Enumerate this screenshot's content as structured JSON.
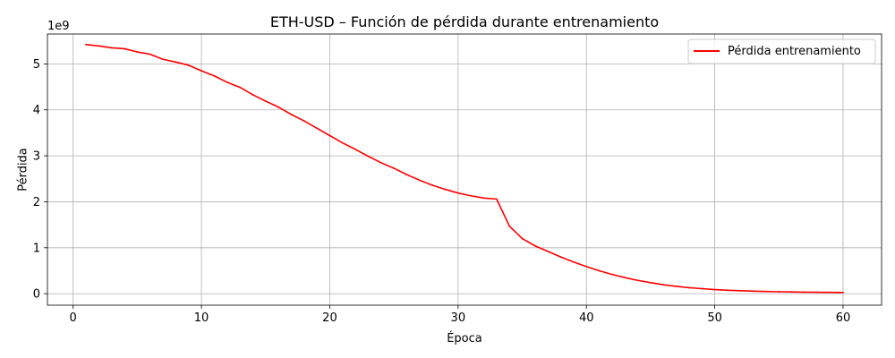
{
  "chart_data": {
    "type": "line",
    "title": "ETH-USD – Función de pérdida durante entrenamiento",
    "xlabel": "Época",
    "ylabel": "Pérdida",
    "y_offset_label": "1e9",
    "xlim": [
      -2,
      63
    ],
    "ylim": [
      -0.25,
      5.65
    ],
    "x_ticks": [
      0,
      10,
      20,
      30,
      40,
      50,
      60
    ],
    "y_ticks": [
      0,
      1,
      2,
      3,
      4,
      5
    ],
    "grid": true,
    "legend_position": "top-right",
    "series": [
      {
        "name": "Pérdida entrenamiento",
        "color": "#ff0000",
        "x": [
          1,
          2,
          3,
          4,
          5,
          6,
          7,
          8,
          9,
          10,
          11,
          12,
          13,
          14,
          15,
          16,
          17,
          18,
          19,
          20,
          21,
          22,
          23,
          24,
          25,
          26,
          27,
          28,
          29,
          30,
          31,
          32,
          33,
          34,
          35,
          36,
          37,
          38,
          39,
          40,
          41,
          42,
          43,
          44,
          45,
          46,
          47,
          48,
          49,
          50,
          51,
          52,
          53,
          54,
          55,
          56,
          57,
          58,
          59,
          60
        ],
        "values": [
          5.42,
          5.39,
          5.35,
          5.33,
          5.26,
          5.21,
          5.1,
          5.04,
          4.97,
          4.85,
          4.74,
          4.6,
          4.49,
          4.33,
          4.19,
          4.06,
          3.9,
          3.76,
          3.6,
          3.44,
          3.28,
          3.14,
          2.99,
          2.85,
          2.73,
          2.59,
          2.47,
          2.36,
          2.27,
          2.19,
          2.13,
          2.08,
          2.06,
          1.47,
          1.2,
          1.04,
          0.92,
          0.8,
          0.69,
          0.59,
          0.5,
          0.42,
          0.35,
          0.29,
          0.24,
          0.195,
          0.16,
          0.13,
          0.11,
          0.09,
          0.075,
          0.065,
          0.055,
          0.048,
          0.042,
          0.038,
          0.034,
          0.031,
          0.029,
          0.027
        ]
      }
    ]
  }
}
